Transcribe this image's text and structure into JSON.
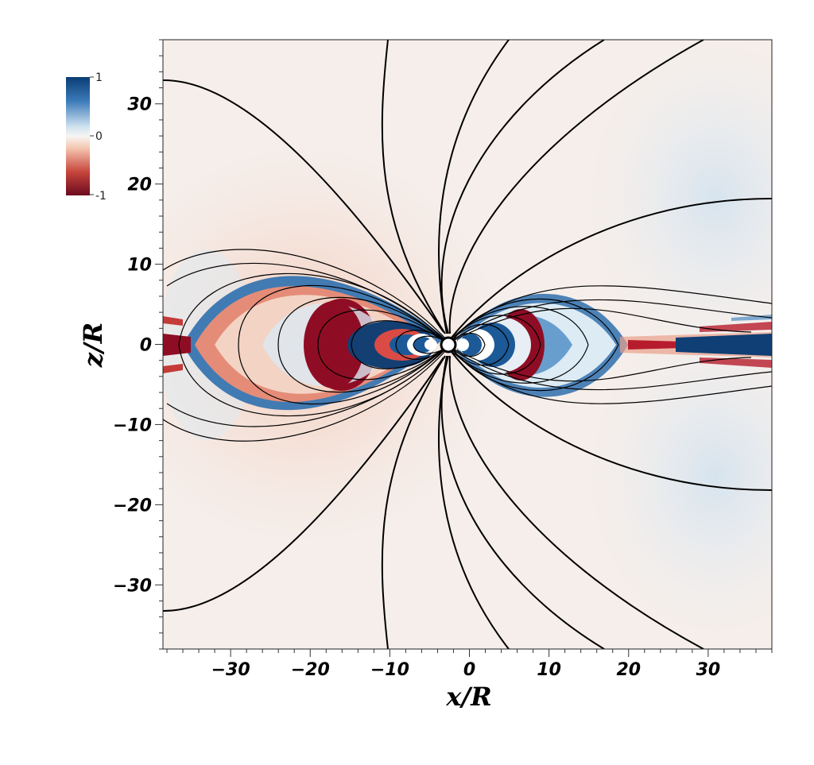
{
  "chart_data": {
    "type": "heatmap",
    "xlabel": "x/R",
    "ylabel": "z/R",
    "xlim": [
      -38.5,
      38
    ],
    "ylim": [
      -38,
      38
    ],
    "x_ticks": [
      -30,
      -20,
      -10,
      0,
      10,
      20,
      30
    ],
    "y_ticks": [
      30,
      20,
      10,
      0,
      -10,
      -20,
      -30
    ],
    "x_tick_labels": [
      "−30",
      "−20",
      "−10",
      "0",
      "10",
      "20",
      "30"
    ],
    "y_tick_labels": [
      "30",
      "20",
      "10",
      "0",
      "−10",
      "−20",
      "−30"
    ],
    "colorbar": {
      "min": -1,
      "max": 1,
      "labels": [
        {
          "value": 1,
          "text": "1"
        },
        {
          "value": 0,
          "text": "0"
        },
        {
          "value": -1,
          "text": "-1"
        }
      ],
      "colormap": "diverging red-white-blue",
      "colors": {
        "high": "#08306b",
        "mid": "#f7f7f7",
        "low": "#67000d"
      }
    },
    "central_body": {
      "x": -2.3,
      "z": 0,
      "radius": 0.9
    },
    "grid": false
  }
}
